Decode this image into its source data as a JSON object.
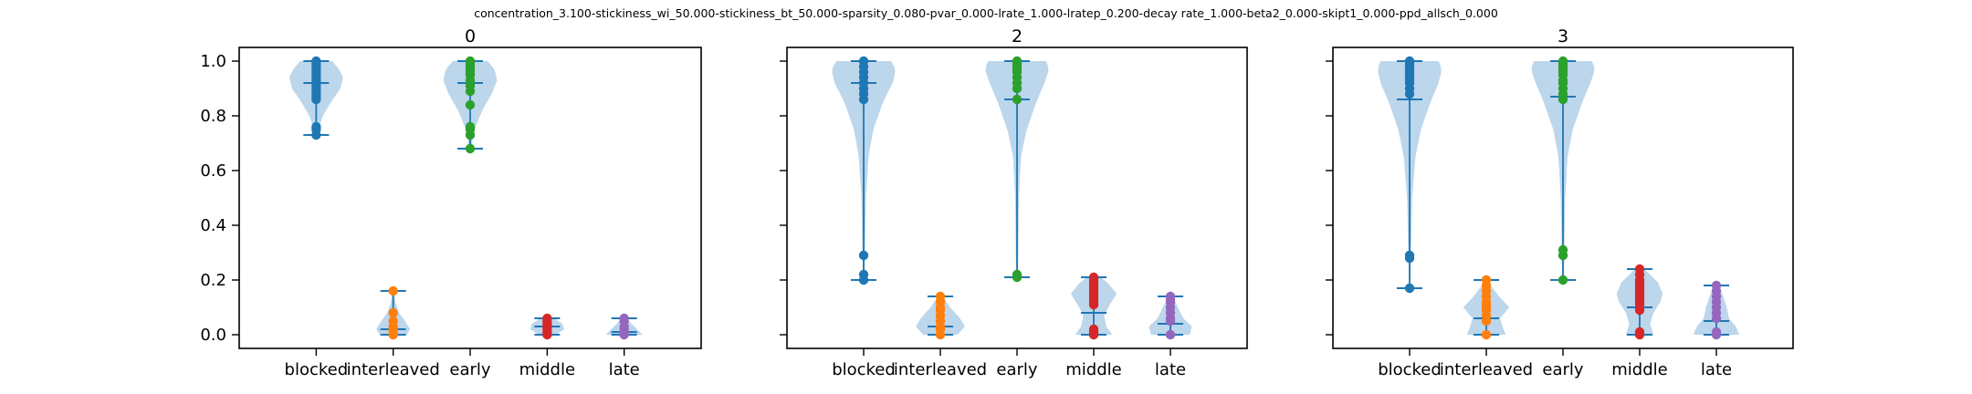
{
  "suptitle": "concentration_3.100-stickiness_wi_50.000-stickiness_bt_50.000-sparsity_0.080-pvar_0.000-lrate_1.000-lratep_0.200-decay rate_1.000-beta2_0.000-skipt1_0.000-ppd_allsch_0.000",
  "chart_data": [
    {
      "type": "violin",
      "title": "0",
      "categories": [
        "blocked",
        "interleaved",
        "early",
        "middle",
        "late"
      ],
      "ylim": [
        -0.05,
        1.05
      ],
      "yticks": [
        0.0,
        0.2,
        0.4,
        0.6,
        0.8,
        1.0
      ],
      "ytick_labels": [
        "0.0",
        "0.2",
        "0.4",
        "0.6",
        "0.8",
        "1.0"
      ],
      "groups": [
        {
          "min": 0.73,
          "max": 1.0,
          "median": 0.92,
          "peak": 0.95,
          "width": 0.35,
          "profile": [
            [
              0.73,
              0.06
            ],
            [
              0.76,
              0.12
            ],
            [
              0.8,
              0.25
            ],
            [
              0.85,
              0.55
            ],
            [
              0.9,
              0.9
            ],
            [
              0.94,
              1.0
            ],
            [
              0.97,
              0.85
            ],
            [
              1.0,
              0.6
            ]
          ],
          "points": [
            0.73,
            0.75,
            0.76,
            0.86,
            0.87,
            0.88,
            0.89,
            0.9,
            0.91,
            0.92,
            0.93,
            0.94,
            0.95,
            0.96,
            0.97,
            0.98,
            0.99,
            1.0
          ]
        },
        {
          "min": 0.0,
          "max": 0.16,
          "median": 0.02,
          "peak": 0.02,
          "width": 0.22,
          "profile": [
            [
              0.0,
              0.8
            ],
            [
              0.02,
              1.0
            ],
            [
              0.05,
              0.7
            ],
            [
              0.08,
              0.35
            ],
            [
              0.12,
              0.12
            ],
            [
              0.16,
              0.04
            ]
          ],
          "points": [
            0.0,
            0.01,
            0.02,
            0.03,
            0.05,
            0.08,
            0.16
          ]
        },
        {
          "min": 0.68,
          "max": 1.0,
          "median": 0.92,
          "peak": 0.95,
          "width": 0.35,
          "profile": [
            [
              0.68,
              0.05
            ],
            [
              0.72,
              0.1
            ],
            [
              0.76,
              0.2
            ],
            [
              0.82,
              0.45
            ],
            [
              0.88,
              0.8
            ],
            [
              0.93,
              1.0
            ],
            [
              0.97,
              0.9
            ],
            [
              1.0,
              0.65
            ]
          ],
          "points": [
            0.68,
            0.73,
            0.75,
            0.76,
            0.84,
            0.89,
            0.91,
            0.93,
            0.95,
            0.96,
            0.97,
            0.98,
            0.99,
            1.0
          ]
        },
        {
          "min": 0.0,
          "max": 0.06,
          "median": 0.03,
          "peak": 0.03,
          "width": 0.22,
          "profile": [
            [
              0.0,
              0.5
            ],
            [
              0.02,
              1.0
            ],
            [
              0.04,
              0.9
            ],
            [
              0.06,
              0.4
            ]
          ],
          "points": [
            0.0,
            0.01,
            0.02,
            0.03,
            0.04,
            0.05,
            0.06
          ]
        },
        {
          "min": 0.0,
          "max": 0.06,
          "median": 0.01,
          "peak": 0.01,
          "width": 0.24,
          "profile": [
            [
              0.0,
              1.0
            ],
            [
              0.02,
              0.7
            ],
            [
              0.04,
              0.4
            ],
            [
              0.06,
              0.15
            ]
          ],
          "points": [
            0.0,
            0.01,
            0.02,
            0.03,
            0.05,
            0.06
          ]
        }
      ]
    },
    {
      "type": "violin",
      "title": "2",
      "categories": [
        "blocked",
        "interleaved",
        "early",
        "middle",
        "late"
      ],
      "ylim": [
        -0.05,
        1.05
      ],
      "yticks": [
        0.0,
        0.2,
        0.4,
        0.6,
        0.8,
        1.0
      ],
      "ytick_labels": [],
      "groups": [
        {
          "min": 0.2,
          "max": 1.0,
          "median": 0.92,
          "peak": 0.95,
          "width": 0.42,
          "profile": [
            [
              0.2,
              0.02
            ],
            [
              0.3,
              0.04
            ],
            [
              0.5,
              0.07
            ],
            [
              0.65,
              0.15
            ],
            [
              0.75,
              0.3
            ],
            [
              0.85,
              0.6
            ],
            [
              0.92,
              0.9
            ],
            [
              0.97,
              1.0
            ],
            [
              1.0,
              0.85
            ]
          ],
          "points": [
            0.2,
            0.22,
            0.29,
            0.86,
            0.88,
            0.9,
            0.92,
            0.94,
            0.96,
            0.98,
            1.0
          ]
        },
        {
          "min": 0.0,
          "max": 0.14,
          "median": 0.03,
          "peak": 0.04,
          "width": 0.32,
          "profile": [
            [
              0.0,
              0.7
            ],
            [
              0.03,
              1.0
            ],
            [
              0.06,
              0.8
            ],
            [
              0.1,
              0.4
            ],
            [
              0.14,
              0.1
            ]
          ],
          "points": [
            0.0,
            0.02,
            0.03,
            0.05,
            0.07,
            0.09,
            0.1,
            0.12,
            0.14
          ]
        },
        {
          "min": 0.21,
          "max": 1.0,
          "median": 0.86,
          "peak": 0.97,
          "width": 0.42,
          "profile": [
            [
              0.21,
              0.03
            ],
            [
              0.3,
              0.04
            ],
            [
              0.5,
              0.06
            ],
            [
              0.65,
              0.12
            ],
            [
              0.75,
              0.3
            ],
            [
              0.85,
              0.6
            ],
            [
              0.92,
              0.85
            ],
            [
              0.97,
              1.0
            ],
            [
              1.0,
              0.9
            ]
          ],
          "points": [
            0.21,
            0.22,
            0.86,
            0.9,
            0.92,
            0.94,
            0.96,
            0.97,
            0.98,
            0.99,
            1.0
          ]
        },
        {
          "min": 0.0,
          "max": 0.21,
          "median": 0.08,
          "peak": 0.15,
          "width": 0.3,
          "profile": [
            [
              0.0,
              0.8
            ],
            [
              0.03,
              0.55
            ],
            [
              0.07,
              0.45
            ],
            [
              0.11,
              0.7
            ],
            [
              0.15,
              1.0
            ],
            [
              0.19,
              0.6
            ],
            [
              0.21,
              0.3
            ]
          ],
          "points": [
            0.0,
            0.01,
            0.02,
            0.11,
            0.12,
            0.13,
            0.14,
            0.15,
            0.16,
            0.17,
            0.18,
            0.19,
            0.2,
            0.21
          ]
        },
        {
          "min": 0.0,
          "max": 0.14,
          "median": 0.04,
          "peak": 0.03,
          "width": 0.28,
          "profile": [
            [
              0.0,
              0.9
            ],
            [
              0.03,
              1.0
            ],
            [
              0.06,
              0.6
            ],
            [
              0.1,
              0.35
            ],
            [
              0.14,
              0.1
            ]
          ],
          "points": [
            0.0,
            0.05,
            0.06,
            0.08,
            0.1,
            0.12,
            0.13,
            0.14
          ]
        }
      ]
    },
    {
      "type": "violin",
      "title": "3",
      "categories": [
        "blocked",
        "interleaved",
        "early",
        "middle",
        "late"
      ],
      "ylim": [
        -0.05,
        1.05
      ],
      "yticks": [
        0.0,
        0.2,
        0.4,
        0.6,
        0.8,
        1.0
      ],
      "ytick_labels": [],
      "groups": [
        {
          "min": 0.17,
          "max": 1.0,
          "median": 0.86,
          "peak": 0.97,
          "width": 0.42,
          "profile": [
            [
              0.17,
              0.02
            ],
            [
              0.3,
              0.04
            ],
            [
              0.5,
              0.08
            ],
            [
              0.65,
              0.18
            ],
            [
              0.75,
              0.35
            ],
            [
              0.85,
              0.65
            ],
            [
              0.92,
              0.9
            ],
            [
              0.97,
              1.0
            ],
            [
              1.0,
              0.9
            ]
          ],
          "points": [
            0.17,
            0.28,
            0.29,
            0.88,
            0.9,
            0.92,
            0.93,
            0.94,
            0.95,
            0.96,
            0.97,
            0.98,
            0.99,
            1.0
          ]
        },
        {
          "min": 0.0,
          "max": 0.2,
          "median": 0.06,
          "peak": 0.1,
          "width": 0.3,
          "profile": [
            [
              0.0,
              0.85
            ],
            [
              0.03,
              0.7
            ],
            [
              0.06,
              0.6
            ],
            [
              0.1,
              1.0
            ],
            [
              0.14,
              0.55
            ],
            [
              0.18,
              0.2
            ],
            [
              0.2,
              0.08
            ]
          ],
          "points": [
            0.0,
            0.05,
            0.07,
            0.09,
            0.1,
            0.11,
            0.12,
            0.14,
            0.16,
            0.18,
            0.2
          ]
        },
        {
          "min": 0.2,
          "max": 1.0,
          "median": 0.87,
          "peak": 0.97,
          "width": 0.42,
          "profile": [
            [
              0.2,
              0.03
            ],
            [
              0.3,
              0.04
            ],
            [
              0.5,
              0.07
            ],
            [
              0.65,
              0.14
            ],
            [
              0.75,
              0.3
            ],
            [
              0.85,
              0.6
            ],
            [
              0.92,
              0.85
            ],
            [
              0.97,
              1.0
            ],
            [
              1.0,
              0.9
            ]
          ],
          "points": [
            0.2,
            0.29,
            0.31,
            0.86,
            0.88,
            0.9,
            0.92,
            0.93,
            0.95,
            0.96,
            0.97,
            0.98,
            0.99,
            1.0
          ]
        },
        {
          "min": 0.0,
          "max": 0.24,
          "median": 0.1,
          "peak": 0.14,
          "width": 0.3,
          "profile": [
            [
              0.0,
              0.6
            ],
            [
              0.04,
              0.45
            ],
            [
              0.08,
              0.6
            ],
            [
              0.12,
              0.9
            ],
            [
              0.15,
              1.0
            ],
            [
              0.19,
              0.8
            ],
            [
              0.22,
              0.45
            ],
            [
              0.24,
              0.2
            ]
          ],
          "points": [
            0.0,
            0.01,
            0.09,
            0.11,
            0.12,
            0.13,
            0.14,
            0.15,
            0.16,
            0.17,
            0.18,
            0.19,
            0.2,
            0.22,
            0.24
          ]
        },
        {
          "min": 0.0,
          "max": 0.18,
          "median": 0.05,
          "peak": 0.02,
          "width": 0.3,
          "profile": [
            [
              0.0,
              1.0
            ],
            [
              0.03,
              0.85
            ],
            [
              0.06,
              0.55
            ],
            [
              0.1,
              0.45
            ],
            [
              0.14,
              0.3
            ],
            [
              0.18,
              0.1
            ]
          ],
          "points": [
            0.0,
            0.01,
            0.06,
            0.08,
            0.1,
            0.12,
            0.14,
            0.16,
            0.18
          ]
        }
      ]
    }
  ],
  "colors": {
    "violin_fill": "#a6c8e6",
    "stats_line": "#1f77b4",
    "points": [
      "#1f77b4",
      "#ff7f0e",
      "#2ca02c",
      "#d62728",
      "#9467bd"
    ]
  }
}
